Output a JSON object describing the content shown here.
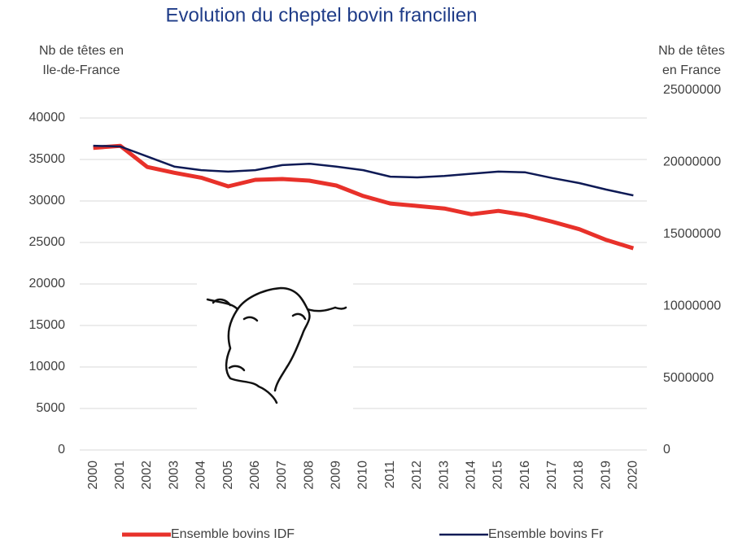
{
  "chart_data": {
    "type": "line",
    "title": "Evolution du cheptel bovin francilien",
    "y_label": [
      "Nb de têtes en",
      "Ile-de-France"
    ],
    "y2_label": [
      "Nb de têtes",
      "en France"
    ],
    "categories": [
      "2000",
      "2001",
      "2002",
      "2003",
      "2004",
      "2005",
      "2006",
      "2007",
      "2008",
      "2009",
      "2010",
      "2011",
      "2012",
      "2013",
      "2014",
      "2015",
      "2016",
      "2017",
      "2018",
      "2019",
      "2020"
    ],
    "series": [
      {
        "name": "Ensemble bovins IDF",
        "color": "#e8312a",
        "width": 5,
        "values": [
          36400,
          36650,
          34100,
          33400,
          32800,
          31760,
          32550,
          32650,
          32450,
          31860,
          30600,
          29700,
          29400,
          29100,
          28400,
          28800,
          28300,
          27500,
          26600,
          25300,
          24300
        ]
      },
      {
        "name": "Ensemble bovins Fr",
        "color": "#0e1a55",
        "width": 2.5,
        "axis": "y2",
        "values": [
          21150000,
          21100000,
          20400000,
          19700000,
          19450000,
          19350000,
          19450000,
          19800000,
          19900000,
          19700000,
          19450000,
          19000000,
          18950000,
          19050000,
          19200000,
          19350000,
          19300000,
          18900000,
          18550000,
          18100000,
          17700000
        ]
      }
    ],
    "ylim": [
      0,
      40000
    ],
    "yticks": [
      0,
      5000,
      10000,
      15000,
      20000,
      25000,
      30000,
      35000,
      40000
    ],
    "y2lim": [
      0,
      25000000
    ],
    "y2ticks": [
      0,
      5000000,
      10000000,
      15000000,
      20000000,
      25000000
    ],
    "grid": true,
    "legend": "bottom",
    "title_color": "#1f3c88"
  }
}
